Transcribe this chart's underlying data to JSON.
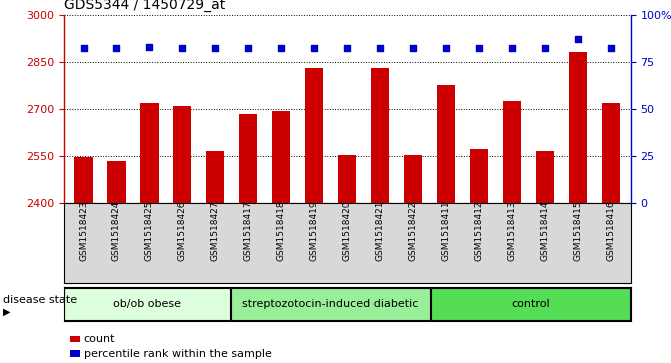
{
  "title": "GDS5344 / 1450729_at",
  "samples": [
    "GSM1518423",
    "GSM1518424",
    "GSM1518425",
    "GSM1518426",
    "GSM1518427",
    "GSM1518417",
    "GSM1518418",
    "GSM1518419",
    "GSM1518420",
    "GSM1518421",
    "GSM1518422",
    "GSM1518411",
    "GSM1518412",
    "GSM1518413",
    "GSM1518414",
    "GSM1518415",
    "GSM1518416"
  ],
  "counts": [
    2548,
    2535,
    2720,
    2710,
    2565,
    2685,
    2692,
    2830,
    2555,
    2830,
    2553,
    2775,
    2572,
    2725,
    2565,
    2882,
    2718
  ],
  "percentile_ranks": [
    82,
    82,
    83,
    82,
    82,
    82,
    82,
    82,
    82,
    82,
    82,
    82,
    82,
    82,
    82,
    87,
    82
  ],
  "bar_color": "#cc0000",
  "dot_color": "#0000cc",
  "ylim_left": [
    2400,
    3000
  ],
  "ylim_right": [
    0,
    100
  ],
  "yticks_left": [
    2400,
    2550,
    2700,
    2850,
    3000
  ],
  "yticks_right": [
    0,
    25,
    50,
    75,
    100
  ],
  "ytick_labels_right": [
    "0",
    "25",
    "50",
    "75",
    "100%"
  ],
  "groups": [
    {
      "label": "ob/ob obese",
      "start": 0,
      "end": 5,
      "color": "#ddffdd"
    },
    {
      "label": "streptozotocin-induced diabetic",
      "start": 5,
      "end": 11,
      "color": "#99ee99"
    },
    {
      "label": "control",
      "start": 11,
      "end": 17,
      "color": "#55dd55"
    }
  ],
  "disease_state_label": "disease state",
  "legend_count_label": "count",
  "legend_percentile_label": "percentile rank within the sample",
  "xtick_bg_color": "#d8d8d8",
  "plot_bg_color": "#ffffff",
  "title_fontsize": 10,
  "tick_fontsize": 8,
  "sample_fontsize": 6.5
}
